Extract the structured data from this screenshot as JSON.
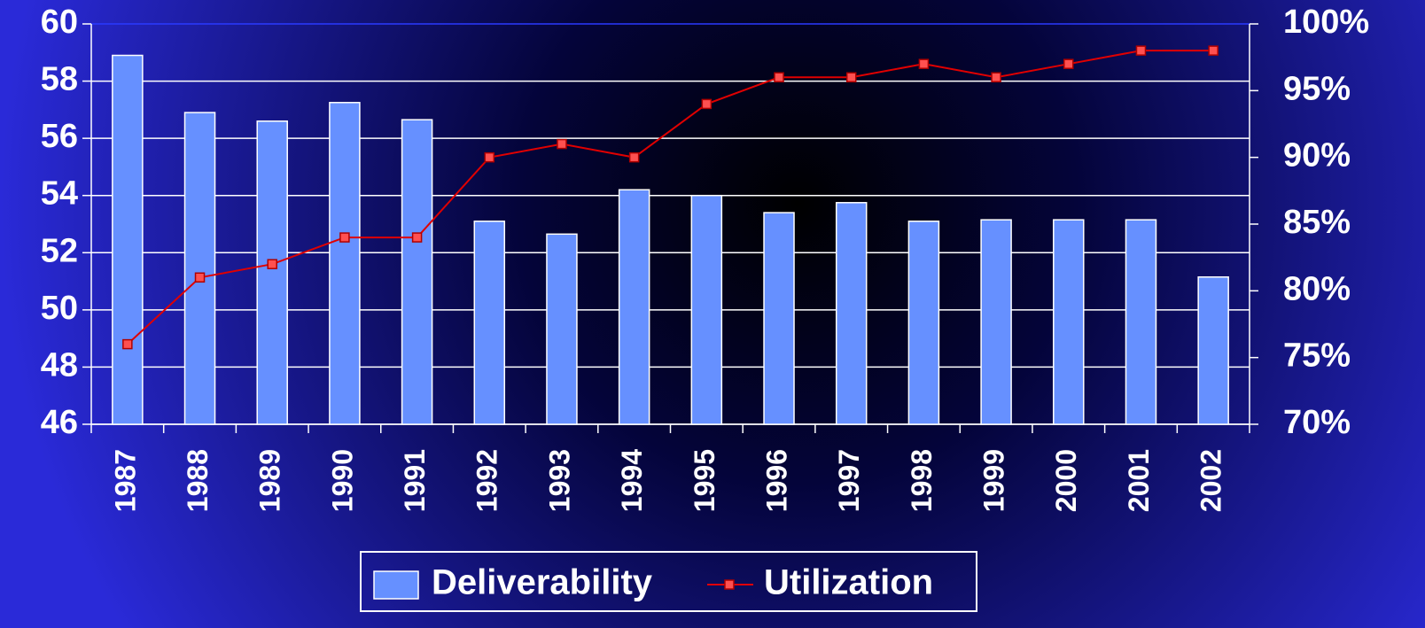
{
  "chart_data": {
    "type": "bar-line",
    "categories": [
      "1987",
      "1988",
      "1989",
      "1990",
      "1991",
      "1992",
      "1993",
      "1994",
      "1995",
      "1996",
      "1997",
      "1998",
      "1999",
      "2000",
      "2001",
      "2002"
    ],
    "series": [
      {
        "name": "Deliverability",
        "color": "#6690ff",
        "type": "bar",
        "values": [
          58.9,
          56.9,
          56.6,
          57.25,
          56.65,
          53.1,
          52.65,
          54.2,
          54.0,
          53.4,
          53.75,
          53.1,
          53.15,
          53.15,
          53.15,
          51.15
        ]
      },
      {
        "name": "Utilization",
        "color": "#e00000",
        "type": "line",
        "axis": "y2",
        "values": [
          76,
          81,
          82,
          84,
          84,
          90,
          91,
          90,
          94,
          96,
          96,
          97,
          96,
          97,
          98,
          98
        ]
      }
    ],
    "ylim": [
      46,
      60
    ],
    "yticks": [
      46,
      48,
      50,
      52,
      54,
      56,
      58,
      60
    ],
    "y2lim": [
      70,
      100
    ],
    "y2ticks": [
      {
        "value": 70,
        "label": "70%"
      },
      {
        "value": 75,
        "label": "75%"
      },
      {
        "value": 80,
        "label": "80%"
      },
      {
        "value": 85,
        "label": "85%"
      },
      {
        "value": 90,
        "label": "90%"
      },
      {
        "value": 95,
        "label": "95%"
      },
      {
        "value": 100,
        "label": "100%"
      }
    ],
    "grid": true,
    "legend": "bottom"
  }
}
